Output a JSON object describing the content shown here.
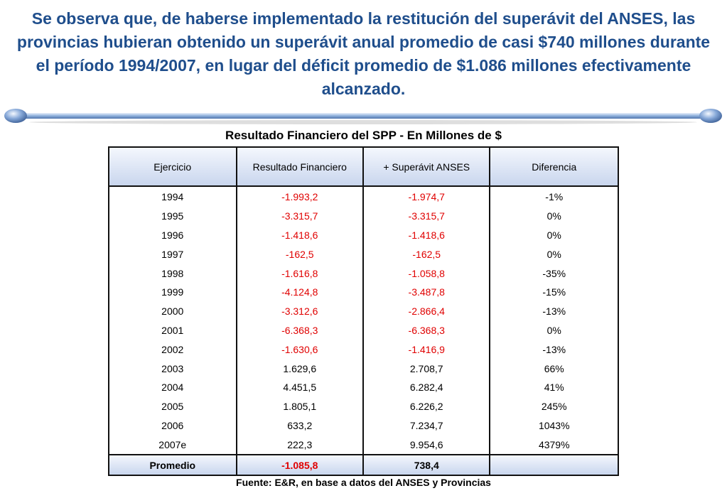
{
  "headline": "Se observa que, de haberse implementado la restitución del superávit del ANSES, las provincias hubieran obtenido un superávit anual promedio de casi $740 millones durante el período 1994/2007, en lugar del déficit promedio de $1.086 millones efectivamente alcanzado.",
  "table_title": "Resultado Financiero del SPP - En Millones de $",
  "columns": [
    "Ejercicio",
    "Resultado Financiero",
    "+ Superávit ANSES",
    "Diferencia"
  ],
  "rows": [
    {
      "ejercicio": "1994",
      "resultado": "-1.993,2",
      "superavit": "-1.974,7",
      "diferencia": "-1%"
    },
    {
      "ejercicio": "1995",
      "resultado": "-3.315,7",
      "superavit": "-3.315,7",
      "diferencia": "0%"
    },
    {
      "ejercicio": "1996",
      "resultado": "-1.418,6",
      "superavit": "-1.418,6",
      "diferencia": "0%"
    },
    {
      "ejercicio": "1997",
      "resultado": "-162,5",
      "superavit": "-162,5",
      "diferencia": "0%"
    },
    {
      "ejercicio": "1998",
      "resultado": "-1.616,8",
      "superavit": "-1.058,8",
      "diferencia": "-35%"
    },
    {
      "ejercicio": "1999",
      "resultado": "-4.124,8",
      "superavit": "-3.487,8",
      "diferencia": "-15%"
    },
    {
      "ejercicio": "2000",
      "resultado": "-3.312,6",
      "superavit": "-2.866,4",
      "diferencia": "-13%"
    },
    {
      "ejercicio": "2001",
      "resultado": "-6.368,3",
      "superavit": "-6.368,3",
      "diferencia": "0%"
    },
    {
      "ejercicio": "2002",
      "resultado": "-1.630,6",
      "superavit": "-1.416,9",
      "diferencia": "-13%"
    },
    {
      "ejercicio": "2003",
      "resultado": "1.629,6",
      "superavit": "2.708,7",
      "diferencia": "66%"
    },
    {
      "ejercicio": "2004",
      "resultado": "4.451,5",
      "superavit": "6.282,4",
      "diferencia": "41%"
    },
    {
      "ejercicio": "2005",
      "resultado": "1.805,1",
      "superavit": "6.226,2",
      "diferencia": "245%"
    },
    {
      "ejercicio": "2006",
      "resultado": "633,2",
      "superavit": "7.234,7",
      "diferencia": "1043%"
    },
    {
      "ejercicio": "2007e",
      "resultado": "222,3",
      "superavit": "9.954,6",
      "diferencia": "4379%"
    }
  ],
  "footer": {
    "label": "Promedio",
    "resultado": "-1.085,8",
    "superavit": "738,4",
    "diferencia": ""
  },
  "source": "Fuente: E&R, en base a datos del ANSES y Provincias",
  "colors": {
    "headline": "#1f4e8c",
    "negative": "#e00000",
    "header_fill": "#c9d6ee",
    "divider": "#6f92c4"
  }
}
